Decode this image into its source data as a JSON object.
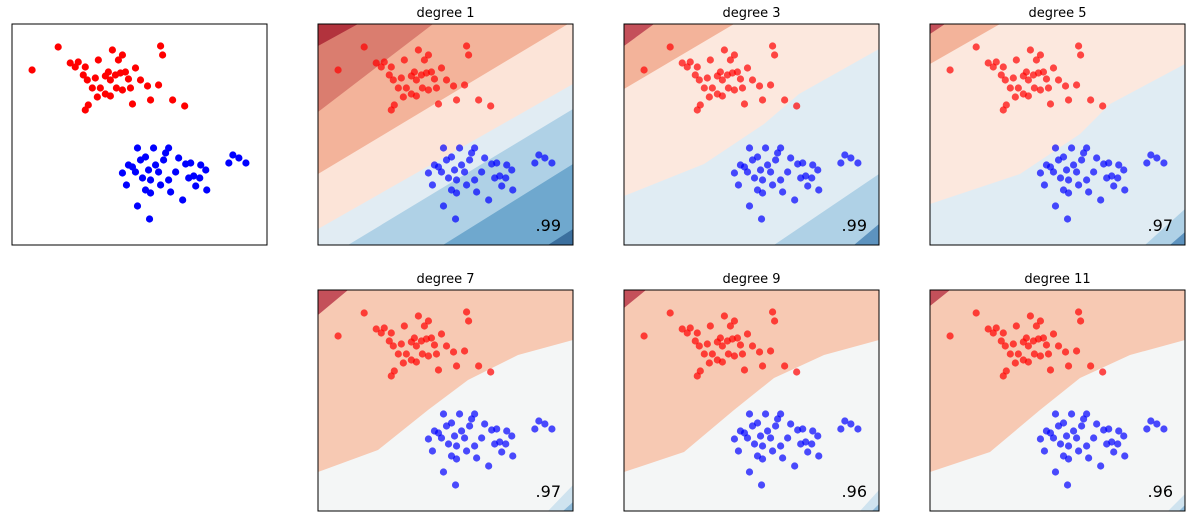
{
  "chart_data": [
    {
      "type": "scatter",
      "xlim": [
        0,
        254
      ],
      "ylim": [
        0,
        221
      ],
      "series": [
        {
          "color": "#ff0000",
          "x": [
            20,
            46,
            58,
            63,
            66,
            73,
            71,
            75,
            83,
            80,
            88,
            86,
            93,
            96,
            98,
            100,
            103,
            106,
            108,
            110,
            113,
            116,
            118,
            110,
            120,
            128,
            135,
            138,
            146,
            148,
            150,
            160,
            172,
            98,
            73,
            76,
            85,
            93,
            104,
            123
          ],
          "values": [
            175,
            198,
            182,
            178,
            183,
            178,
            170,
            165,
            167,
            157,
            157,
            185,
            169,
            173,
            165,
            195,
            170,
            185,
            172,
            190,
            173,
            166,
            157,
            155,
            141,
            165,
            159,
            145,
            160,
            199,
            190,
            145,
            139,
            149,
            135,
            140,
            148,
            151,
            157,
            177
          ]
        },
        {
          "color": "#0000ff",
          "x": [
            110,
            116,
            120,
            125,
            128,
            130,
            133,
            136,
            138,
            141,
            143,
            146,
            148,
            151,
            153,
            156,
            158,
            163,
            166,
            170,
            173,
            178,
            181,
            183,
            187,
            193,
            194,
            216,
            220,
            226,
            233,
            137,
            125,
            114,
            138,
            123,
            156,
            176,
            188,
            133
          ],
          "values": [
            72,
            80,
            78,
            97,
            85,
            67,
            88,
            75,
            65,
            97,
            80,
            73,
            60,
            85,
            92,
            65,
            53,
            73,
            87,
            45,
            81,
            82,
            69,
            59,
            67,
            75,
            55,
            82,
            90,
            87,
            82,
            26,
            39,
            60,
            52,
            73,
            97,
            67,
            80,
            55
          ]
        }
      ]
    },
    {
      "type": "scatter",
      "title": "degree  1",
      "score": ".99"
    },
    {
      "type": "scatter",
      "title": "degree  3",
      "score": ".99"
    },
    {
      "type": "scatter",
      "title": "degree  5",
      "score": ".97"
    },
    {
      "type": "scatter",
      "title": "degree  7",
      "score": ".97"
    },
    {
      "type": "scatter",
      "title": "degree  9",
      "score": ".96"
    },
    {
      "type": "scatter",
      "title": "degree  11",
      "score": ".96"
    }
  ]
}
